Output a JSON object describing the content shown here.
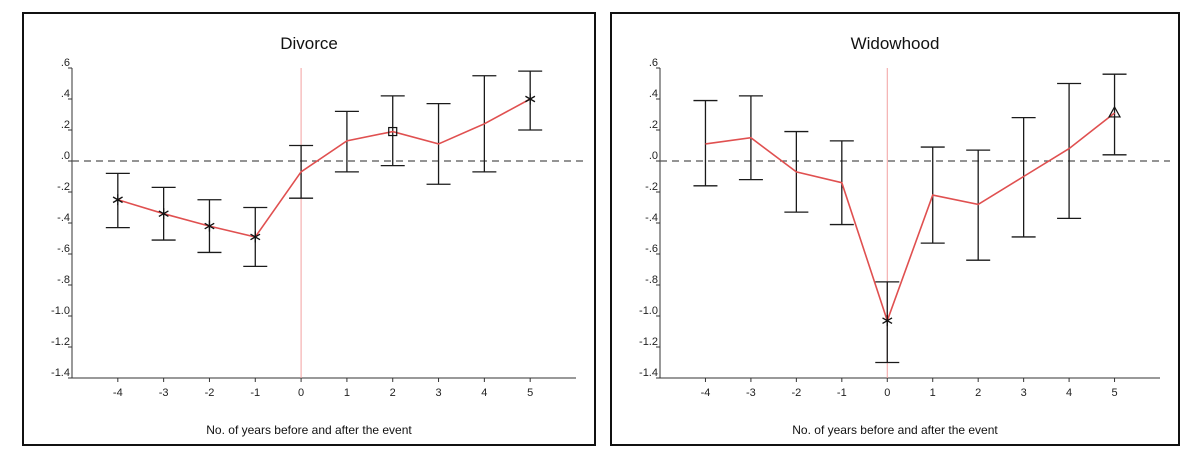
{
  "colors": {
    "line": "#e05050",
    "errorbar": "#1a1a1a",
    "axis": "#333333",
    "zero_line": "#555555",
    "event_line": "#f2a0a0"
  },
  "chart_data": [
    {
      "type": "line",
      "title": "Divorce",
      "xlabel": "No. of years before and after the event",
      "ylabel": "",
      "x": [
        -4,
        -3,
        -2,
        -1,
        0,
        1,
        2,
        3,
        4,
        5
      ],
      "x_tick_labels": [
        "-4",
        "-3",
        "-2",
        "-1",
        "0",
        "1",
        "2",
        "3",
        "4",
        "5"
      ],
      "y_tick_values": [
        0.6,
        0.4,
        0.2,
        0.0,
        -0.2,
        -0.4,
        -0.6,
        -0.8,
        -1.0,
        -1.2,
        -1.4
      ],
      "y_tick_labels": [
        ".6",
        ".4",
        ".2",
        ".0",
        "-.2",
        "-.4",
        "-.6",
        "-.8",
        "-1.0",
        "-1.2",
        "-1.4"
      ],
      "ylim": [
        -1.4,
        0.6
      ],
      "xlim": [
        -5,
        6
      ],
      "series": [
        {
          "values": [
            -0.25,
            -0.34,
            -0.42,
            -0.49,
            -0.07,
            0.13,
            0.19,
            0.11,
            0.24,
            0.4
          ],
          "lower": [
            -0.43,
            -0.51,
            -0.59,
            -0.68,
            -0.24,
            -0.07,
            -0.03,
            -0.15,
            -0.07,
            0.2
          ],
          "upper": [
            -0.08,
            -0.17,
            -0.25,
            -0.3,
            0.1,
            0.32,
            0.42,
            0.37,
            0.55,
            0.58
          ],
          "markers": [
            "star",
            "star",
            "star",
            "star",
            "none",
            "none",
            "square",
            "none",
            "none",
            "star"
          ]
        }
      ],
      "reference_lines": {
        "horizontal_dashed_y": 0.0,
        "vertical_x": 0
      }
    },
    {
      "type": "line",
      "title": "Widowhood",
      "xlabel": "No. of years before and after the event",
      "ylabel": "",
      "x": [
        -4,
        -3,
        -2,
        -1,
        0,
        1,
        2,
        3,
        4,
        5
      ],
      "x_tick_labels": [
        "-4",
        "-3",
        "-2",
        "-1",
        "0",
        "1",
        "2",
        "3",
        "4",
        "5"
      ],
      "y_tick_values": [
        0.6,
        0.4,
        0.2,
        0.0,
        -0.2,
        -0.4,
        -0.6,
        -0.8,
        -1.0,
        -1.2,
        -1.4
      ],
      "y_tick_labels": [
        ".6",
        ".4",
        ".2",
        ".0",
        "-.2",
        "-.4",
        "-.6",
        "-.8",
        "-1.0",
        "-1.2",
        "-1.4"
      ],
      "ylim": [
        -1.4,
        0.6
      ],
      "xlim": [
        -5,
        6
      ],
      "series": [
        {
          "values": [
            0.11,
            0.15,
            -0.07,
            -0.14,
            -1.03,
            -0.22,
            -0.28,
            -0.1,
            0.08,
            0.31
          ],
          "lower": [
            -0.16,
            -0.12,
            -0.33,
            -0.41,
            -1.3,
            -0.53,
            -0.64,
            -0.49,
            -0.37,
            0.04
          ],
          "upper": [
            0.39,
            0.42,
            0.19,
            0.13,
            -0.78,
            0.09,
            0.07,
            0.28,
            0.5,
            0.56
          ],
          "markers": [
            "none",
            "none",
            "none",
            "none",
            "star",
            "none",
            "none",
            "none",
            "none",
            "triangle"
          ]
        }
      ],
      "reference_lines": {
        "horizontal_dashed_y": 0.0,
        "vertical_x": 0
      }
    }
  ]
}
